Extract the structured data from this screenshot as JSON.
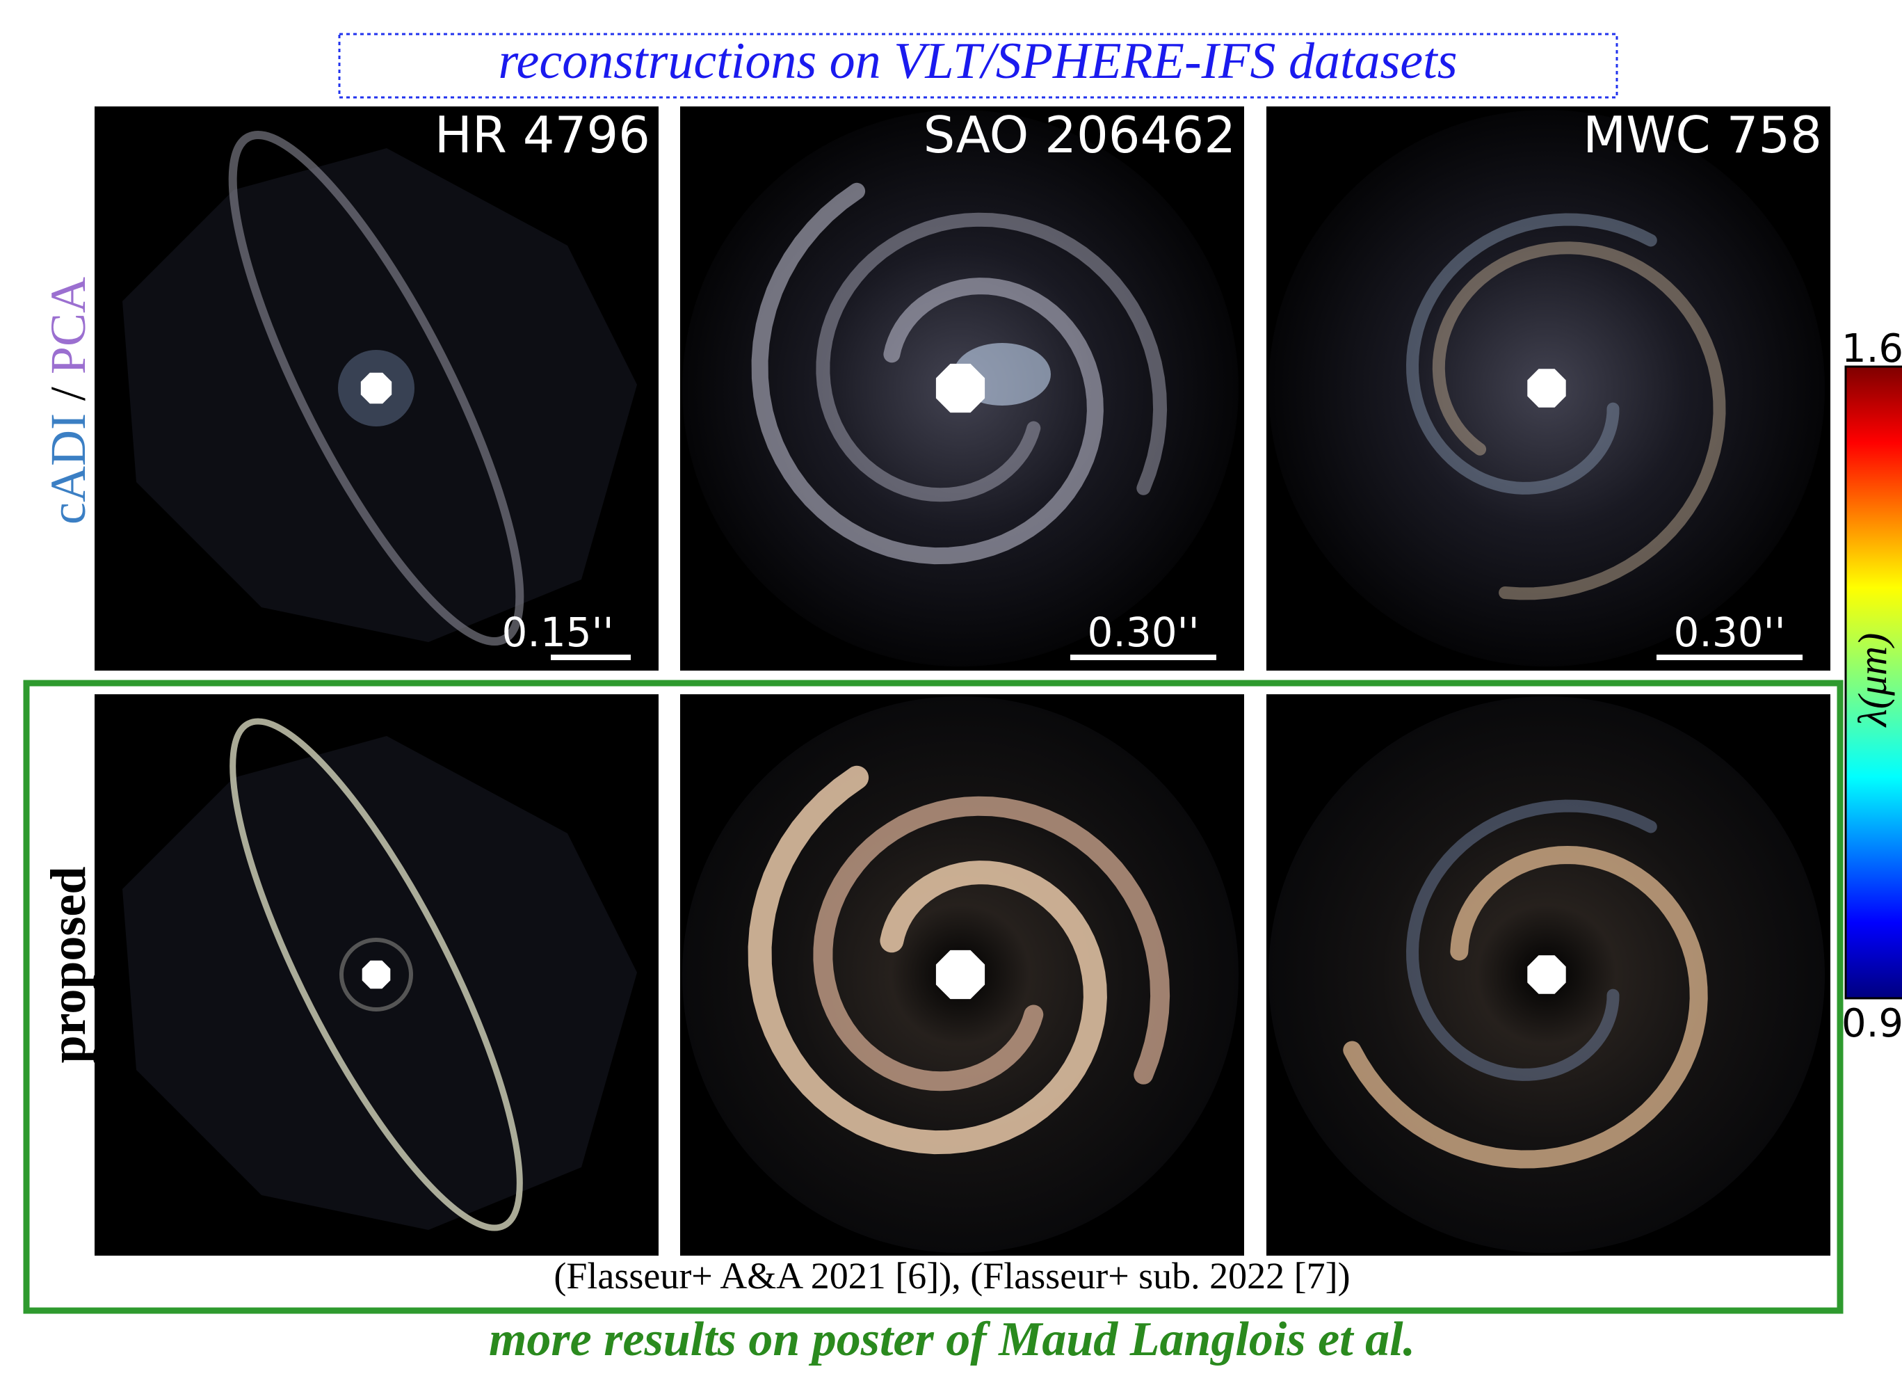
{
  "title": "reconstructions on VLT/SPHERE-IFS datasets",
  "top_row_label": {
    "method_a": "cADI",
    "separator": "/",
    "method_b": "PCA"
  },
  "bottom_row_label": "proposed",
  "targets": [
    "HR 4796",
    "SAO 206462",
    "MWC 758"
  ],
  "scale_bars": [
    "0.15''",
    "0.30''",
    "0.30''"
  ],
  "colorbar": {
    "label": "λ(μm)",
    "max": "1.6",
    "min": "0.9"
  },
  "citation": "(Flasseur+ A&A 2021 [6]), (Flasseur+ sub. 2022 [7])",
  "footer": "more results on poster of Maud Langlois et al."
}
